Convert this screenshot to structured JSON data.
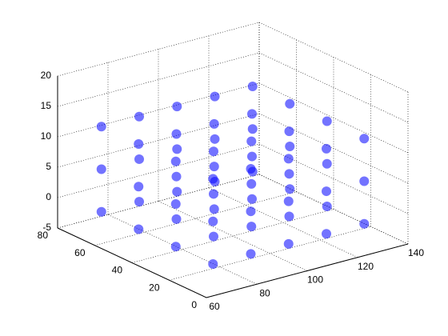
{
  "chart_data": {
    "type": "scatter3d",
    "color": "#0000ff",
    "grid": true,
    "xlim": [
      60,
      140
    ],
    "xticks": [
      60,
      80,
      100,
      120,
      140
    ],
    "ylim": [
      0,
      80
    ],
    "yticks": [
      0,
      20,
      40,
      60,
      80
    ],
    "zlim": [
      -5,
      20
    ],
    "zticks": [
      -5,
      0,
      5,
      10,
      15,
      20
    ],
    "x": [
      70,
      85,
      100,
      115,
      130,
      70,
      85,
      100,
      115,
      130,
      70,
      85,
      100,
      115,
      130,
      70,
      85,
      100,
      115,
      130,
      70,
      85,
      100,
      115,
      130,
      70,
      85,
      100,
      115,
      130,
      70,
      85,
      100,
      115,
      130,
      70,
      85,
      100,
      115,
      130,
      70,
      85,
      100,
      115,
      130,
      70,
      85,
      100,
      115,
      130,
      70,
      85,
      100,
      115,
      130,
      70,
      85,
      100,
      115,
      130
    ],
    "y": [
      10,
      10,
      10,
      10,
      10,
      30,
      30,
      30,
      30,
      30,
      50,
      50,
      50,
      50,
      50,
      70,
      70,
      70,
      70,
      70,
      10,
      10,
      10,
      10,
      10,
      30,
      30,
      30,
      30,
      30,
      50,
      50,
      50,
      50,
      50,
      70,
      70,
      70,
      70,
      70,
      10,
      10,
      10,
      10,
      10,
      30,
      30,
      30,
      30,
      30,
      50,
      50,
      50,
      50,
      50,
      70,
      70,
      70,
      70,
      70
    ],
    "z": [
      -2,
      -2,
      -2,
      -2,
      -2,
      -2,
      -2,
      -2,
      -2,
      -2,
      -2,
      -2,
      -2,
      -2,
      -2,
      -2,
      -2,
      -2,
      -2,
      -2,
      5,
      5,
      5,
      5,
      5,
      5,
      5,
      5,
      5,
      5,
      5,
      5,
      5,
      5,
      5,
      5,
      5,
      5,
      5,
      5,
      12,
      12,
      12,
      12,
      12,
      12,
      12,
      12,
      12,
      12,
      12,
      12,
      12,
      12,
      12,
      12,
      12,
      12,
      12,
      12
    ]
  }
}
